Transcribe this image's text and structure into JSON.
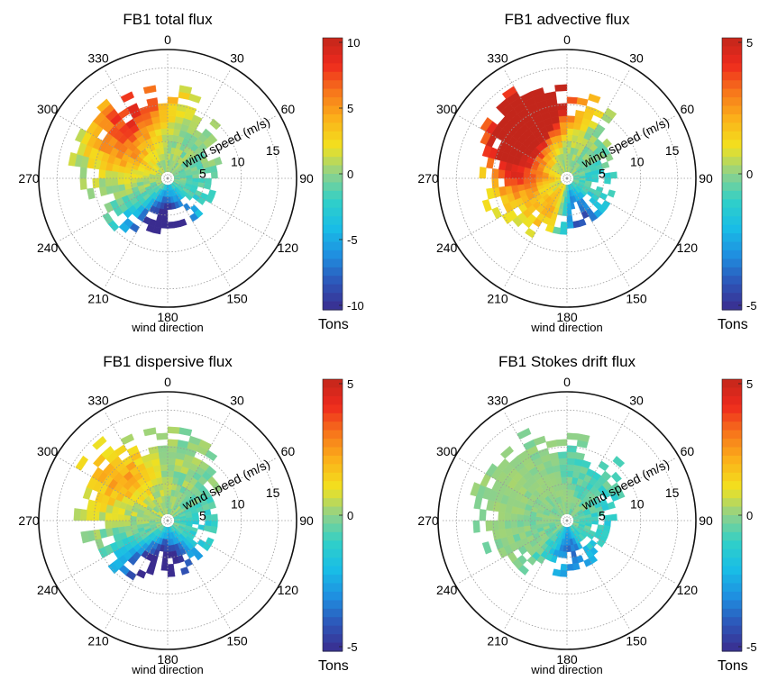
{
  "chart_data": [
    {
      "type": "polar-heatmap",
      "title": "FB1 total flux",
      "xlabel": "wind direction",
      "rlabel": "wind speed (m/s)",
      "colorbar_label": "Tons",
      "colorbar_ticks": [
        "10",
        "5",
        "0",
        "-5",
        "-10"
      ],
      "clim": [
        -10,
        10
      ],
      "angle_ticks": [
        "0",
        "30",
        "60",
        "90",
        "120",
        "150",
        "180",
        "210",
        "240",
        "270",
        "300",
        "330"
      ],
      "radial_ticks": [
        "5",
        "10",
        "15"
      ],
      "rlim": [
        0,
        17
      ],
      "hotspots": [
        {
          "direction": 330,
          "speed": 10,
          "value": 5
        },
        {
          "direction": 300,
          "speed": 7,
          "value": 4
        },
        {
          "direction": 345,
          "speed": 12,
          "value": 3
        },
        {
          "direction": 180,
          "speed": 6,
          "value": -9
        },
        {
          "direction": 200,
          "speed": 8,
          "value": -6
        },
        {
          "direction": 150,
          "speed": 6,
          "value": -3
        },
        {
          "direction": 90,
          "speed": 5,
          "value": -1
        }
      ]
    },
    {
      "type": "polar-heatmap",
      "title": "FB1 advective flux",
      "xlabel": "wind direction",
      "rlabel": "wind speed (m/s)",
      "colorbar_label": "Tons",
      "colorbar_ticks": [
        "5",
        "0",
        "-5"
      ],
      "clim": [
        -5,
        5
      ],
      "angle_ticks": [
        "0",
        "30",
        "60",
        "90",
        "120",
        "150",
        "180",
        "210",
        "240",
        "270",
        "300",
        "330"
      ],
      "radial_ticks": [
        "5",
        "10",
        "15"
      ],
      "rlim": [
        0,
        17
      ],
      "hotspots": [
        {
          "direction": 310,
          "speed": 9,
          "value": 5
        },
        {
          "direction": 330,
          "speed": 10,
          "value": 4
        },
        {
          "direction": 270,
          "speed": 6,
          "value": 3
        },
        {
          "direction": 200,
          "speed": 5,
          "value": 3
        },
        {
          "direction": 355,
          "speed": 12,
          "value": 3
        },
        {
          "direction": 170,
          "speed": 5,
          "value": -4
        },
        {
          "direction": 150,
          "speed": 8,
          "value": -2
        },
        {
          "direction": 90,
          "speed": 5,
          "value": -1
        }
      ]
    },
    {
      "type": "polar-heatmap",
      "title": "FB1 dispersive flux",
      "xlabel": "wind direction",
      "rlabel": "wind speed (m/s)",
      "colorbar_label": "Tons",
      "colorbar_ticks": [
        "5",
        "0",
        "-5"
      ],
      "clim": [
        -5,
        5
      ],
      "angle_ticks": [
        "0",
        "30",
        "60",
        "90",
        "120",
        "150",
        "180",
        "210",
        "240",
        "270",
        "300",
        "330"
      ],
      "radial_ticks": [
        "5",
        "10",
        "15"
      ],
      "rlim": [
        0,
        17
      ],
      "hotspots": [
        {
          "direction": 320,
          "speed": 8,
          "value": 1.5
        },
        {
          "direction": 300,
          "speed": 10,
          "value": 1
        },
        {
          "direction": 185,
          "speed": 6,
          "value": -4.5
        },
        {
          "direction": 210,
          "speed": 8,
          "value": -3
        },
        {
          "direction": 150,
          "speed": 6,
          "value": -2
        },
        {
          "direction": 90,
          "speed": 5,
          "value": -1
        }
      ]
    },
    {
      "type": "polar-heatmap",
      "title": "FB1 Stokes drift flux",
      "xlabel": "wind direction",
      "rlabel": "wind speed (m/s)",
      "colorbar_label": "Tons",
      "colorbar_ticks": [
        "5",
        "0",
        "-5"
      ],
      "clim": [
        -5,
        5
      ],
      "angle_ticks": [
        "0",
        "30",
        "60",
        "90",
        "120",
        "150",
        "180",
        "210",
        "240",
        "270",
        "300",
        "330"
      ],
      "radial_ticks": [
        "5",
        "10",
        "15"
      ],
      "rlim": [
        0,
        17
      ],
      "hotspots": [
        {
          "direction": 180,
          "speed": 4,
          "value": -3
        },
        {
          "direction": 150,
          "speed": 7,
          "value": -1.5
        },
        {
          "direction": 90,
          "speed": 6,
          "value": -1.2
        },
        {
          "direction": 30,
          "speed": 8,
          "value": -0.8
        },
        {
          "direction": 300,
          "speed": 10,
          "value": 0.5
        }
      ]
    }
  ],
  "colormap": [
    "#3a2c8f",
    "#2d56b8",
    "#1f8fe0",
    "#19bde6",
    "#30d0c8",
    "#8fd18a",
    "#f2e11e",
    "#fbb21a",
    "#f7761b",
    "#ee2a1d",
    "#c3261b"
  ]
}
